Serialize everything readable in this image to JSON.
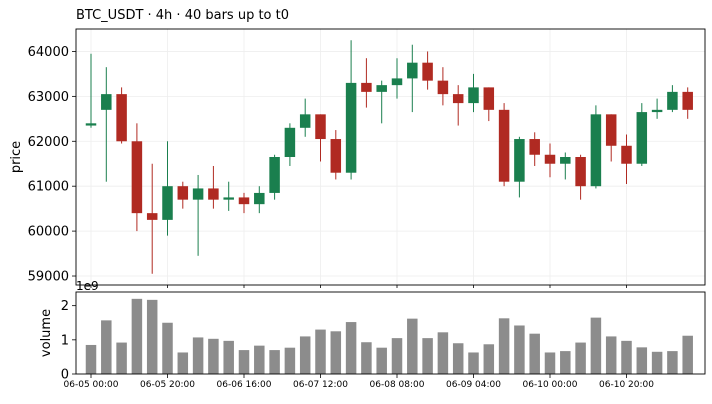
{
  "chart_data": {
    "type": "candlestick",
    "title": "BTC_USDT  ·  4h  ·  40 bars up to t0",
    "price_panel": {
      "ylabel": "price",
      "ylim": [
        58800,
        64500
      ],
      "yticks": [
        59000,
        60000,
        61000,
        62000,
        63000,
        64000
      ],
      "grid": true
    },
    "volume_panel": {
      "ylabel": "volume",
      "scale_label": "1e9",
      "ylim": [
        0,
        2.4
      ],
      "yticks": [
        0,
        1,
        2
      ],
      "grid": false
    },
    "x_ticks": [
      {
        "index": 0,
        "label": "06-05 00:00"
      },
      {
        "index": 5,
        "label": "06-05 20:00"
      },
      {
        "index": 10,
        "label": "06-06 16:00"
      },
      {
        "index": 15,
        "label": "06-07 12:00"
      },
      {
        "index": 20,
        "label": "06-08 08:00"
      },
      {
        "index": 25,
        "label": "06-09 04:00"
      },
      {
        "index": 30,
        "label": "06-10 00:00"
      },
      {
        "index": 35,
        "label": "06-10 20:00"
      }
    ],
    "colors": {
      "up": "#1a7f4e",
      "down": "#b02a22",
      "volume": "#8c8c8c"
    },
    "candles": [
      {
        "open": 62350,
        "high": 63950,
        "low": 62300,
        "close": 62400
      },
      {
        "open": 62700,
        "high": 63650,
        "low": 61100,
        "close": 63050
      },
      {
        "open": 63050,
        "high": 63200,
        "low": 61950,
        "close": 62000
      },
      {
        "open": 62000,
        "high": 62400,
        "low": 60000,
        "close": 60400
      },
      {
        "open": 60400,
        "high": 61500,
        "low": 59050,
        "close": 60250
      },
      {
        "open": 60250,
        "high": 62000,
        "low": 59900,
        "close": 61000
      },
      {
        "open": 61000,
        "high": 61100,
        "low": 60500,
        "close": 60700
      },
      {
        "open": 60700,
        "high": 61250,
        "low": 59450,
        "close": 60950
      },
      {
        "open": 60950,
        "high": 61450,
        "low": 60500,
        "close": 60700
      },
      {
        "open": 60700,
        "high": 61100,
        "low": 60450,
        "close": 60750
      },
      {
        "open": 60750,
        "high": 60850,
        "low": 60400,
        "close": 60600
      },
      {
        "open": 60600,
        "high": 61000,
        "low": 60400,
        "close": 60850
      },
      {
        "open": 60850,
        "high": 61700,
        "low": 60700,
        "close": 61650
      },
      {
        "open": 61650,
        "high": 62400,
        "low": 61450,
        "close": 62300
      },
      {
        "open": 62300,
        "high": 62950,
        "low": 62100,
        "close": 62600
      },
      {
        "open": 62600,
        "high": 62600,
        "low": 61550,
        "close": 62050
      },
      {
        "open": 62050,
        "high": 62250,
        "low": 61150,
        "close": 61300
      },
      {
        "open": 61300,
        "high": 64250,
        "low": 61150,
        "close": 63300
      },
      {
        "open": 63300,
        "high": 63850,
        "low": 62750,
        "close": 63100
      },
      {
        "open": 63100,
        "high": 63350,
        "low": 62400,
        "close": 63250
      },
      {
        "open": 63250,
        "high": 63850,
        "low": 62950,
        "close": 63400
      },
      {
        "open": 63400,
        "high": 64150,
        "low": 62650,
        "close": 63750
      },
      {
        "open": 63750,
        "high": 64000,
        "low": 63150,
        "close": 63350
      },
      {
        "open": 63350,
        "high": 63650,
        "low": 62800,
        "close": 63050
      },
      {
        "open": 63050,
        "high": 63250,
        "low": 62350,
        "close": 62850
      },
      {
        "open": 62850,
        "high": 63500,
        "low": 62650,
        "close": 63200
      },
      {
        "open": 63200,
        "high": 63200,
        "low": 62450,
        "close": 62700
      },
      {
        "open": 62700,
        "high": 62850,
        "low": 61000,
        "close": 61100
      },
      {
        "open": 61100,
        "high": 62100,
        "low": 60750,
        "close": 62050
      },
      {
        "open": 62050,
        "high": 62200,
        "low": 61450,
        "close": 61700
      },
      {
        "open": 61700,
        "high": 61950,
        "low": 61200,
        "close": 61500
      },
      {
        "open": 61500,
        "high": 61750,
        "low": 61150,
        "close": 61650
      },
      {
        "open": 61650,
        "high": 61700,
        "low": 60700,
        "close": 61000
      },
      {
        "open": 61000,
        "high": 62800,
        "low": 60950,
        "close": 62600
      },
      {
        "open": 62600,
        "high": 62600,
        "low": 61550,
        "close": 61900
      },
      {
        "open": 61900,
        "high": 62150,
        "low": 61050,
        "close": 61500
      },
      {
        "open": 61500,
        "high": 62850,
        "low": 61450,
        "close": 62650
      },
      {
        "open": 62650,
        "high": 62950,
        "low": 62500,
        "close": 62700
      },
      {
        "open": 62700,
        "high": 63250,
        "low": 62650,
        "close": 63100
      },
      {
        "open": 63100,
        "high": 63200,
        "low": 62500,
        "close": 62700
      }
    ],
    "volume": [
      0.85,
      1.57,
      0.92,
      2.2,
      2.17,
      1.5,
      0.63,
      1.07,
      1.03,
      0.97,
      0.7,
      0.83,
      0.7,
      0.77,
      1.1,
      1.3,
      1.25,
      1.52,
      0.93,
      0.77,
      1.05,
      1.62,
      1.05,
      1.22,
      0.9,
      0.63,
      0.87,
      1.63,
      1.42,
      1.18,
      0.63,
      0.67,
      0.92,
      1.65,
      1.1,
      0.97,
      0.78,
      0.65,
      0.67,
      1.12
    ]
  }
}
